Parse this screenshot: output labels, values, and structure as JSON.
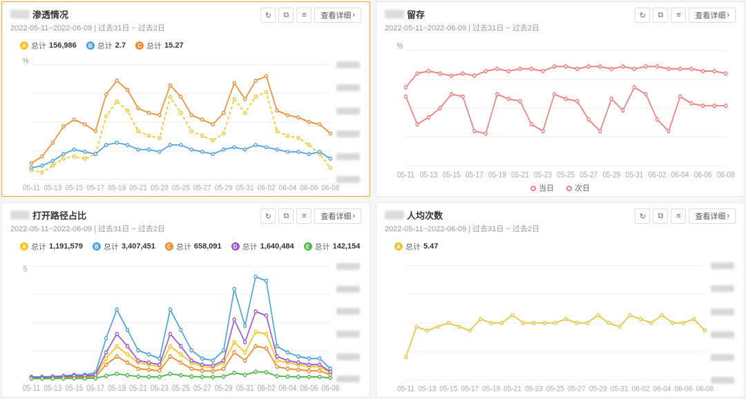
{
  "global": {
    "date_range_text": "2022-05-11~2022-06-09 | 过去31日 ~ 过去2日",
    "x_labels": [
      "05-11",
      "05-13",
      "05-15",
      "05-17",
      "05-19",
      "05-21",
      "05-23",
      "05-25",
      "05-27",
      "05-29",
      "05-31",
      "06-02",
      "06-04",
      "06-06",
      "06-08"
    ],
    "detail_button": "查看详细",
    "chevron": "›",
    "legend_prefix": "总计"
  },
  "cards": {
    "penetration": {
      "title_suffix": "渗透情况",
      "highlight": true,
      "y_unit": "%",
      "xlim": [
        0,
        28
      ],
      "ylim": [
        0,
        100
      ],
      "grid_color": "#f0f0f0",
      "show_side_blur": true,
      "series": [
        {
          "letter": "A",
          "label_val": "156,986",
          "color": "#f5c518",
          "dash": false,
          "values": [
            8,
            6,
            12,
            18,
            20,
            18,
            22,
            55,
            68,
            60,
            42,
            38,
            36,
            72,
            58,
            42,
            38,
            34,
            40,
            70,
            58,
            72,
            76,
            42,
            38,
            36,
            30,
            22,
            10
          ]
        },
        {
          "letter": "B",
          "label_val": "2.7",
          "color": "#4aa3df",
          "dash": false,
          "values": [
            10,
            12,
            16,
            22,
            26,
            24,
            22,
            30,
            32,
            30,
            26,
            26,
            24,
            30,
            30,
            26,
            24,
            22,
            26,
            28,
            26,
            30,
            28,
            26,
            24,
            24,
            22,
            24,
            18
          ]
        },
        {
          "letter": "C",
          "label_val": "15.27",
          "color": "#f08c2e",
          "dash": false,
          "values": [
            14,
            20,
            32,
            46,
            52,
            48,
            42,
            74,
            86,
            78,
            62,
            58,
            56,
            82,
            72,
            56,
            52,
            48,
            58,
            84,
            70,
            86,
            90,
            60,
            56,
            54,
            50,
            48,
            40
          ]
        }
      ],
      "legend_colors": {
        "A": "#f5c518",
        "B": "#4aa3df",
        "C": "#f08c2e"
      }
    },
    "retention": {
      "title_suffix": "留存",
      "y_unit": "%",
      "xlim": [
        0,
        28
      ],
      "ylim": [
        0,
        100
      ],
      "grid_color": "#f0f0f0",
      "show_side_blur": false,
      "series": [
        {
          "label": "当日",
          "color": "#f47c7c",
          "dash": false,
          "marker": true,
          "values": [
            68,
            80,
            82,
            80,
            78,
            80,
            78,
            82,
            84,
            82,
            84,
            84,
            82,
            86,
            86,
            84,
            86,
            86,
            84,
            86,
            84,
            86,
            86,
            84,
            84,
            84,
            82,
            82,
            80
          ]
        },
        {
          "label": "次日",
          "color": "#f47c7c",
          "dash": false,
          "marker": true,
          "values": [
            60,
            36,
            42,
            50,
            62,
            60,
            30,
            28,
            62,
            58,
            56,
            36,
            30,
            62,
            58,
            56,
            40,
            30,
            58,
            48,
            68,
            62,
            40,
            30,
            60,
            54,
            52,
            52,
            52
          ]
        }
      ],
      "bottom_legend": [
        "当日",
        "次日"
      ]
    },
    "open_path": {
      "title_suffix": "打开路径占比",
      "highlight": false,
      "y_unit": "",
      "xlim": [
        0,
        28
      ],
      "ylim": [
        0,
        5.5
      ],
      "grid_color": "#f0f0f0",
      "show_side_blur": true,
      "y_ticks_hint": "5",
      "series": [
        {
          "letter": "A",
          "label_val": "1,191,579",
          "color": "#f5c518",
          "values": [
            0.1,
            0.1,
            0.1,
            0.1,
            0.15,
            0.15,
            0.2,
            1.0,
            1.6,
            1.2,
            0.8,
            0.7,
            0.6,
            1.6,
            1.2,
            0.8,
            0.6,
            0.55,
            0.8,
            1.8,
            1.3,
            2.3,
            2.2,
            0.9,
            0.8,
            0.7,
            0.6,
            0.6,
            0.3
          ]
        },
        {
          "letter": "B",
          "label_val": "3,407,451",
          "color": "#4aa3df",
          "values": [
            0.1,
            0.1,
            0.12,
            0.15,
            0.2,
            0.2,
            0.3,
            2.0,
            3.4,
            2.4,
            1.4,
            1.2,
            1.0,
            3.4,
            2.4,
            1.4,
            1.0,
            0.9,
            1.4,
            4.4,
            2.6,
            5.0,
            4.8,
            1.6,
            1.3,
            1.1,
            1.0,
            1.0,
            0.5
          ]
        },
        {
          "letter": "C",
          "label_val": "658,091",
          "color": "#f08c2e",
          "values": [
            0.05,
            0.05,
            0.06,
            0.08,
            0.1,
            0.1,
            0.12,
            0.7,
            1.1,
            0.8,
            0.5,
            0.45,
            0.4,
            1.1,
            0.8,
            0.5,
            0.4,
            0.38,
            0.5,
            1.3,
            0.9,
            1.6,
            1.5,
            0.6,
            0.5,
            0.45,
            0.4,
            0.4,
            0.2
          ]
        },
        {
          "letter": "D",
          "label_val": "1,640,484",
          "color": "#9b59d0",
          "values": [
            0.08,
            0.08,
            0.1,
            0.12,
            0.15,
            0.15,
            0.2,
            1.3,
            2.2,
            1.6,
            0.9,
            0.8,
            0.7,
            2.2,
            1.6,
            0.9,
            0.7,
            0.65,
            0.9,
            2.9,
            1.8,
            3.3,
            3.1,
            1.1,
            0.9,
            0.8,
            0.7,
            0.7,
            0.35
          ]
        },
        {
          "letter": "E",
          "label_val": "142,154",
          "color": "#52b849",
          "values": [
            0.02,
            0.02,
            0.02,
            0.03,
            0.03,
            0.03,
            0.04,
            0.15,
            0.25,
            0.18,
            0.12,
            0.1,
            0.1,
            0.25,
            0.18,
            0.12,
            0.1,
            0.09,
            0.12,
            0.3,
            0.2,
            0.35,
            0.33,
            0.14,
            0.12,
            0.1,
            0.1,
            0.1,
            0.05
          ]
        }
      ],
      "legend_colors": {
        "A": "#f5c518",
        "B": "#4aa3df",
        "C": "#f08c2e",
        "D": "#9b59d0",
        "E": "#52b849"
      }
    },
    "avg_times": {
      "title_suffix": "人均次数",
      "y_unit": "",
      "xlim": [
        0,
        28
      ],
      "ylim": [
        4,
        7
      ],
      "grid_color": "#f0f0f0",
      "show_side_blur": true,
      "series": [
        {
          "letter": "A",
          "label_val": "5.47",
          "color": "#e8c43a",
          "marker": true,
          "values": [
            4.6,
            5.4,
            5.3,
            5.4,
            5.5,
            5.4,
            5.3,
            5.6,
            5.5,
            5.5,
            5.7,
            5.5,
            5.5,
            5.5,
            5.5,
            5.6,
            5.5,
            5.5,
            5.7,
            5.5,
            5.4,
            5.7,
            5.6,
            5.5,
            5.7,
            5.5,
            5.5,
            5.6,
            5.3
          ]
        }
      ],
      "legend_colors": {
        "A": "#e8c43a"
      }
    }
  }
}
